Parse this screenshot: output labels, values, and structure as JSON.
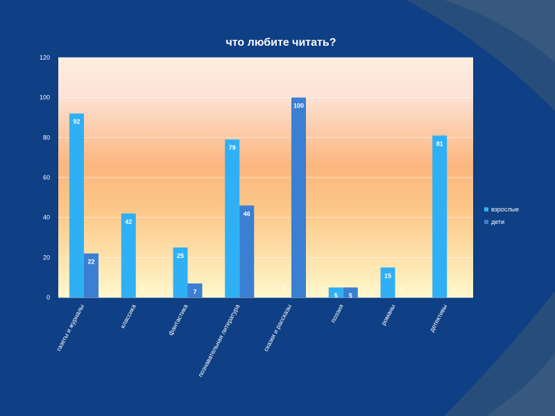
{
  "colors": {
    "background": "#0f3f84",
    "adults": "#2fb0f4",
    "children": "#3a7fd2"
  },
  "chart_data": {
    "type": "bar",
    "title": "что любите читать?",
    "categories": [
      "газеты и журналы",
      "классика",
      "фантастика",
      "познавательная литература",
      "сказки и рассказы",
      "поэзия",
      "романы",
      "детективы"
    ],
    "series": [
      {
        "name": "взрослые",
        "values": [
          92,
          42,
          25,
          79,
          0,
          5,
          15,
          81
        ]
      },
      {
        "name": "дети",
        "values": [
          22,
          0,
          7,
          46,
          100,
          5,
          0,
          0
        ]
      }
    ],
    "ylim": [
      0,
      120
    ],
    "yticks": [
      0,
      20,
      40,
      60,
      80,
      100,
      120
    ],
    "grid": true,
    "legend": "right"
  }
}
